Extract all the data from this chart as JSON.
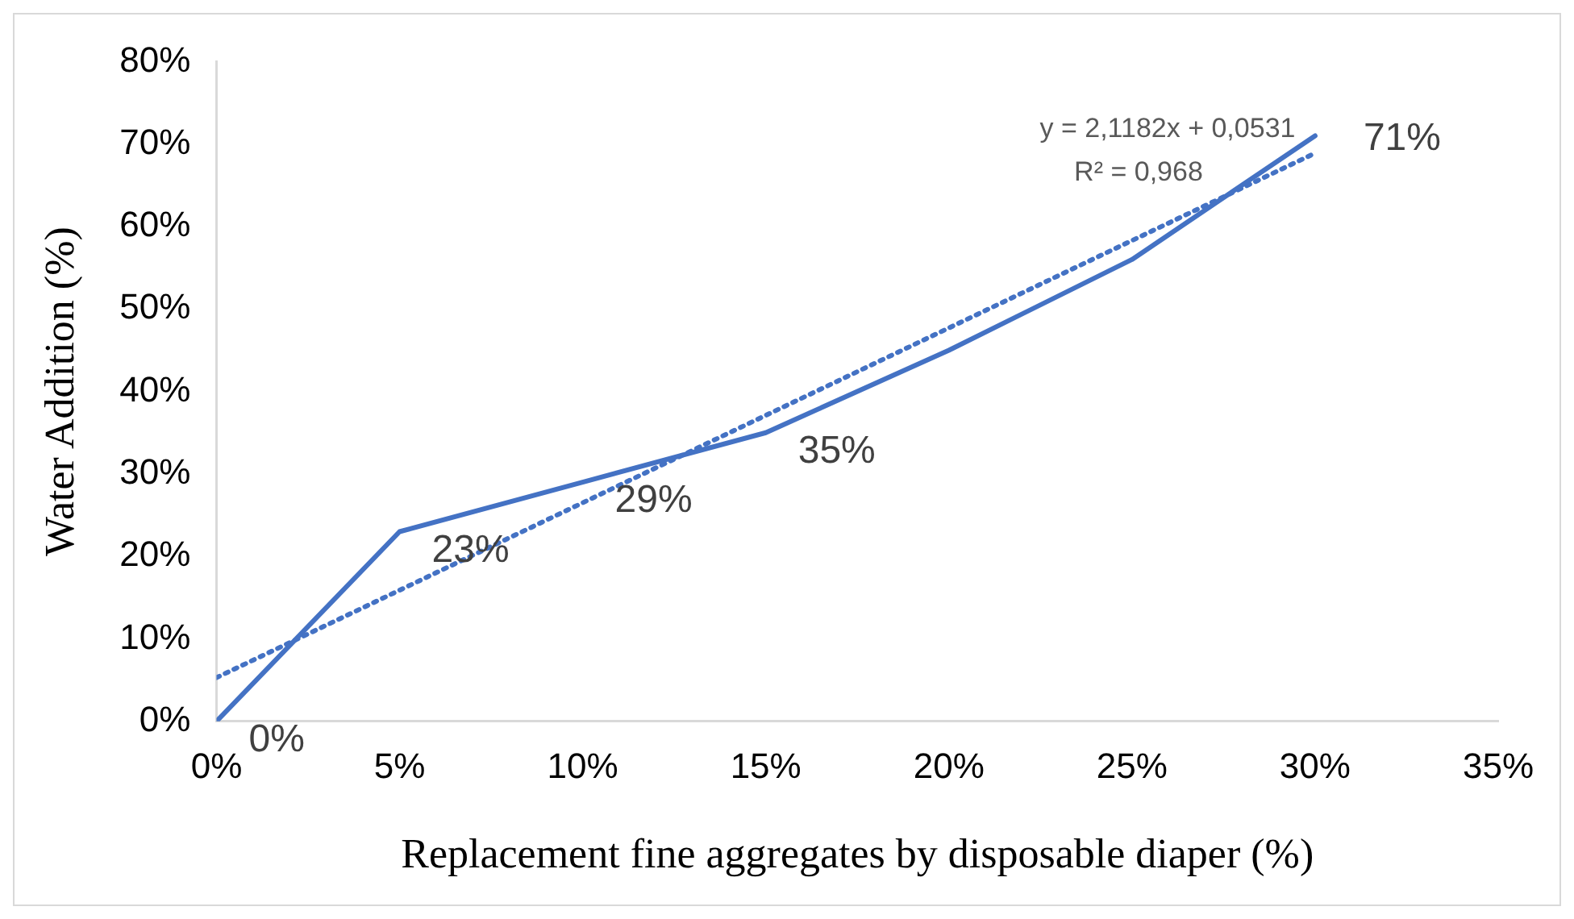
{
  "chart_data": {
    "type": "line",
    "xlabel": "Replacement fine aggregates by disposable diaper (%)",
    "ylabel": "Water Addition (%)",
    "x": [
      0,
      5,
      10,
      15,
      20,
      25,
      30
    ],
    "series": [
      {
        "type": "line",
        "color": "#4472c4",
        "values": [
          0,
          23,
          29,
          35,
          45,
          56,
          71
        ],
        "value_labels": [
          "0%",
          "23%",
          "29%",
          "35%",
          null,
          null,
          "71%"
        ],
        "line_style": "solid"
      },
      {
        "type": "line",
        "color": "#4472c4",
        "x": [
          0,
          30
        ],
        "values": [
          5.3,
          68.9
        ],
        "line_style": "dotted"
      }
    ],
    "annotations": [
      "y = 2,1182x + 0,0531",
      "R² = 0,968"
    ],
    "xlim": [
      0,
      35
    ],
    "xticks": [
      {
        "value": 0,
        "label": "0%"
      },
      {
        "value": 5,
        "label": "5%"
      },
      {
        "value": 10,
        "label": "10%"
      },
      {
        "value": 15,
        "label": "15%"
      },
      {
        "value": 20,
        "label": "20%"
      },
      {
        "value": 25,
        "label": "25%"
      },
      {
        "value": 30,
        "label": "30%"
      },
      {
        "value": 35,
        "label": "35%"
      }
    ],
    "ylim": [
      0,
      80
    ],
    "yticks": [
      {
        "value": 0,
        "label": "0%"
      },
      {
        "value": 10,
        "label": "10%"
      },
      {
        "value": 20,
        "label": "20%"
      },
      {
        "value": 30,
        "label": "30%"
      },
      {
        "value": 40,
        "label": "40%"
      },
      {
        "value": 50,
        "label": "50%"
      },
      {
        "value": 60,
        "label": "60%"
      },
      {
        "value": 70,
        "label": "70%"
      },
      {
        "value": 80,
        "label": "80%"
      }
    ],
    "grid": false,
    "legend": false,
    "marker": "none"
  }
}
